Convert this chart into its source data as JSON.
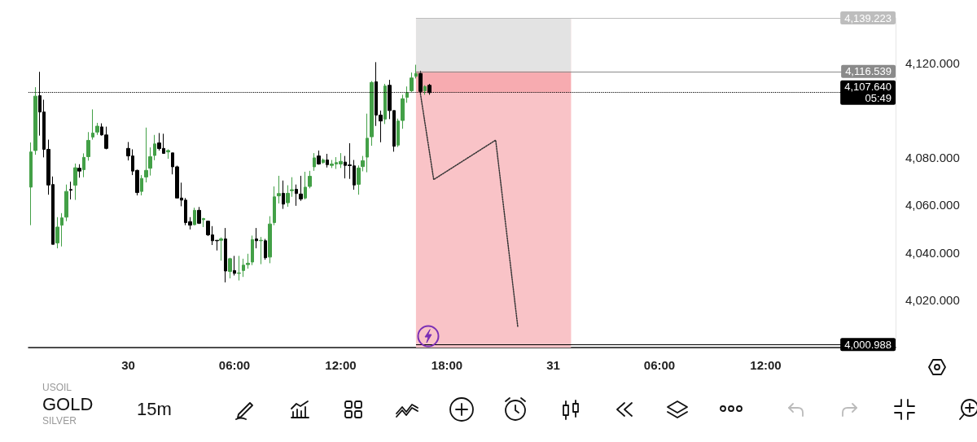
{
  "chart_data": {
    "type": "candlestick",
    "xlim": [
      "--10-29T18:22",
      "--10-31T19:20"
    ],
    "xticks": [
      {
        "value": "--10-30T00:00",
        "label": "30"
      },
      {
        "value": "--10-30T06:00",
        "label": "06:00"
      },
      {
        "value": "--10-30T12:00",
        "label": "12:00"
      },
      {
        "value": "--10-30T18:00",
        "label": "18:00"
      },
      {
        "value": "--10-31T00:00",
        "label": "31"
      },
      {
        "value": "--10-31T06:00",
        "label": "06:00"
      },
      {
        "value": "--10-31T12:00",
        "label": "12:00"
      }
    ],
    "ylim": [
      3999.7,
      4139.223
    ],
    "yticks": [
      {
        "value": 4020,
        "label": "4,020.000"
      },
      {
        "value": 4040,
        "label": "4,040.000"
      },
      {
        "value": 4060,
        "label": "4,060.000"
      },
      {
        "value": 4080,
        "label": "4,080.000"
      },
      {
        "value": 4120,
        "label": "4,120.000"
      }
    ],
    "series": [
      {
        "x": [
          "--10-29T18:30",
          "--10-29T18:45",
          "--10-29T19:00",
          "--10-29T19:15",
          "--10-29T19:30",
          "--10-29T19:45",
          "--10-29T20:00",
          "--10-29T20:15",
          "--10-29T20:30",
          "--10-29T20:45",
          "--10-29T21:00",
          "--10-29T21:15",
          "--10-29T21:30",
          "--10-29T21:45",
          "--10-29T22:00",
          "--10-29T22:15",
          "--10-29T22:30",
          "--10-29T22:45",
          "--10-30T00:00",
          "--10-30T00:15",
          "--10-30T00:30",
          "--10-30T00:45",
          "--10-30T01:00",
          "--10-30T01:15",
          "--10-30T01:30",
          "--10-30T01:45",
          "--10-30T02:00",
          "--10-30T02:15",
          "--10-30T02:30",
          "--10-30T02:45",
          "--10-30T03:00",
          "--10-30T03:15",
          "--10-30T03:30",
          "--10-30T03:45",
          "--10-30T04:00",
          "--10-30T04:15",
          "--10-30T04:30",
          "--10-30T04:45",
          "--10-30T05:00",
          "--10-30T05:15",
          "--10-30T05:30",
          "--10-30T05:45",
          "--10-30T06:00",
          "--10-30T06:15",
          "--10-30T06:30",
          "--10-30T06:45",
          "--10-30T07:00",
          "--10-30T07:15",
          "--10-30T07:30",
          "--10-30T07:45",
          "--10-30T08:00",
          "--10-30T08:15",
          "--10-30T08:30",
          "--10-30T08:45",
          "--10-30T09:00",
          "--10-30T09:15",
          "--10-30T09:30",
          "--10-30T09:45",
          "--10-30T10:00",
          "--10-30T10:15",
          "--10-30T10:30",
          "--10-30T10:45",
          "--10-30T11:00",
          "--10-30T11:15",
          "--10-30T11:30",
          "--10-30T11:45",
          "--10-30T12:00",
          "--10-30T12:15",
          "--10-30T12:30",
          "--10-30T12:45",
          "--10-30T13:00",
          "--10-30T13:15",
          "--10-30T13:30",
          "--10-30T13:45",
          "--10-30T14:00",
          "--10-30T14:15",
          "--10-30T14:30",
          "--10-30T14:45",
          "--10-30T15:00",
          "--10-30T15:15",
          "--10-30T15:30",
          "--10-30T15:45",
          "--10-30T16:00",
          "--10-30T16:15",
          "--10-30T16:30",
          "--10-30T16:45",
          "--10-30T17:00"
        ],
        "ohlc": [
          [
            4067.6,
            4086.5,
            4051.5,
            4082.5
          ],
          [
            4083.1,
            4109.9,
            4081.3,
            4106.1
          ],
          [
            4106.3,
            4116.4,
            4089.4,
            4099.4
          ],
          [
            4099.4,
            4104.6,
            4080.2,
            4083.6
          ],
          [
            4083.6,
            4087.7,
            4064.4,
            4068.5
          ],
          [
            4068.7,
            4072.1,
            4043.4,
            4043.4
          ],
          [
            4044.0,
            4054.9,
            4041.7,
            4050.7
          ],
          [
            4051.5,
            4056.6,
            4042.5,
            4054.6
          ],
          [
            4054.9,
            4068.7,
            4053.2,
            4065.8
          ],
          [
            4066.6,
            4069.9,
            4062.4,
            4066.3
          ],
          [
            4068.4,
            4077.6,
            4062.2,
            4075.8
          ],
          [
            4075.6,
            4077.3,
            4071.6,
            4074.4
          ],
          [
            4075.0,
            4081.9,
            4071.8,
            4080.2
          ],
          [
            4080.5,
            4090.9,
            4078.8,
            4087.4
          ],
          [
            4088.8,
            4100.5,
            4087.7,
            4090.5
          ],
          [
            4090.9,
            4094.8,
            4089.7,
            4093.4
          ],
          [
            4093.1,
            4094.6,
            4089.4,
            4089.7
          ],
          [
            4089.7,
            4093.2,
            4083.6,
            4084.0
          ],
          [
            4084.0,
            4086.7,
            4078.9,
            4080.8
          ],
          [
            4080.8,
            4083.6,
            4072.7,
            4074.4
          ],
          [
            4074.7,
            4075.0,
            4064.1,
            4065.3
          ],
          [
            4065.8,
            4072.7,
            4064.1,
            4071.3
          ],
          [
            4071.9,
            4092.8,
            4069.6,
            4074.7
          ],
          [
            4075.6,
            4084.4,
            4072.5,
            4080.5
          ],
          [
            4081.0,
            4089.7,
            4079.0,
            4085.9
          ],
          [
            4086.3,
            4090.5,
            4083.1,
            4083.9
          ],
          [
            4084.0,
            4090.2,
            4081.9,
            4081.9
          ],
          [
            4082.5,
            4083.6,
            4079.6,
            4083.1
          ],
          [
            4082.1,
            4082.1,
            4073.0,
            4076.2
          ],
          [
            4076.2,
            4076.7,
            4063.0,
            4063.0
          ],
          [
            4063.0,
            4069.5,
            4059.5,
            4062.1
          ],
          [
            4062.1,
            4063.0,
            4051.5,
            4052.6
          ],
          [
            4053.0,
            4054.9,
            4049.7,
            4051.5
          ],
          [
            4051.7,
            4058.9,
            4051.5,
            4057.8
          ],
          [
            4057.8,
            4059.2,
            4052.0,
            4052.3
          ],
          [
            4053.8,
            4054.6,
            4050.7,
            4054.3
          ],
          [
            4053.2,
            4053.4,
            4046.9,
            4047.4
          ],
          [
            4047.4,
            4051.1,
            4043.1,
            4044.9
          ],
          [
            4045.1,
            4045.1,
            4040.8,
            4044.9
          ],
          [
            4045.1,
            4046.3,
            4036.5,
            4045.7
          ],
          [
            4045.7,
            4050.3,
            4027.3,
            4032.1
          ],
          [
            4031.9,
            4037.7,
            4029.0,
            4037.3
          ],
          [
            4032.3,
            4038.5,
            4030.2,
            4031.1
          ],
          [
            4031.1,
            4038.5,
            4028.1,
            4031.3
          ],
          [
            4032.3,
            4037.3,
            4029.6,
            4034.6
          ],
          [
            4034.8,
            4039.4,
            4033.1,
            4035.4
          ],
          [
            4035.9,
            4047.1,
            4034.6,
            4045.4
          ],
          [
            4045.7,
            4050.3,
            4041.7,
            4044.9
          ],
          [
            4044.9,
            4046.5,
            4035.0,
            4045.1
          ],
          [
            4044.9,
            4045.7,
            4036.9,
            4037.7
          ],
          [
            4038.0,
            4055.3,
            4035.4,
            4052.0
          ],
          [
            4052.6,
            4067.9,
            4051.5,
            4063.5
          ],
          [
            4063.9,
            4072.4,
            4060.7,
            4064.9
          ],
          [
            4065.0,
            4070.4,
            4058.4,
            4060.4
          ],
          [
            4061.0,
            4068.4,
            4059.3,
            4065.0
          ],
          [
            4066.1,
            4071.8,
            4063.5,
            4066.5
          ],
          [
            4066.7,
            4068.7,
            4059.7,
            4064.9
          ],
          [
            4064.7,
            4072.4,
            4061.8,
            4062.6
          ],
          [
            4063.0,
            4074.1,
            4062.4,
            4067.6
          ],
          [
            4067.9,
            4074.5,
            4067.1,
            4072.2
          ],
          [
            4076.2,
            4082.0,
            4074.5,
            4080.0
          ],
          [
            4080.8,
            4083.1,
            4077.1,
            4077.4
          ],
          [
            4078.0,
            4079.7,
            4077.6,
            4079.1
          ],
          [
            4079.1,
            4081.7,
            4075.9,
            4077.1
          ],
          [
            4076.8,
            4079.1,
            4075.7,
            4077.4
          ],
          [
            4077.4,
            4080.3,
            4075.3,
            4078.0
          ],
          [
            4077.4,
            4082.0,
            4075.7,
            4078.5
          ],
          [
            4078.2,
            4080.8,
            4071.3,
            4076.8
          ],
          [
            4077.0,
            4086.2,
            4071.1,
            4076.7
          ],
          [
            4076.6,
            4079.1,
            4066.5,
            4068.5
          ],
          [
            4068.8,
            4076.8,
            4064.4,
            4075.7
          ],
          [
            4076.3,
            4080.8,
            4074.3,
            4078.8
          ],
          [
            4080.3,
            4098.7,
            4073.9,
            4088.3
          ],
          [
            4088.9,
            4112.5,
            4085.1,
            4111.9
          ],
          [
            4112.2,
            4120.5,
            4093.5,
            4098.1
          ],
          [
            4098.1,
            4100.0,
            4086.6,
            4095.6
          ],
          [
            4096.4,
            4111.3,
            4094.3,
            4110.4
          ],
          [
            4110.7,
            4113.0,
            4096.4,
            4100.0
          ],
          [
            4100.0,
            4100.0,
            4082.6,
            4084.9
          ],
          [
            4085.4,
            4096.6,
            4084.6,
            4095.6
          ],
          [
            4095.8,
            4106.7,
            4092.3,
            4105.0
          ],
          [
            4105.6,
            4110.2,
            4103.3,
            4107.6
          ],
          [
            4108.4,
            4116.1,
            4107.9,
            4113.8
          ],
          [
            4114.5,
            4119.4,
            4113.6,
            4115.7
          ],
          [
            4115.7,
            4116.8,
            4106.7,
            4108.1
          ],
          [
            4108.4,
            4110.7,
            4106.7,
            4110.2
          ],
          [
            4110.7,
            4111.3,
            4106.7,
            4107.6
          ]
        ],
        "colors": [
          "#43a047",
          "#43a047",
          "#000000",
          "#000000",
          "#000000",
          "#000000",
          "#43a047",
          "#43a047",
          "#43a047",
          "#000000",
          "#43a047",
          "#000000",
          "#43a047",
          "#43a047",
          "#43a047",
          "#43a047",
          "#000000",
          "#000000",
          "#000000",
          "#000000",
          "#000000",
          "#43a047",
          "#43a047",
          "#43a047",
          "#43a047",
          "#000000",
          "#000000",
          "#43a047",
          "#000000",
          "#000000",
          "#000000",
          "#000000",
          "#000000",
          "#43a047",
          "#000000",
          "#43a047",
          "#000000",
          "#000000",
          "#000000",
          "#43a047",
          "#000000",
          "#43a047",
          "#000000",
          "#43a047",
          "#43a047",
          "#43a047",
          "#43a047",
          "#000000",
          "#43a047",
          "#000000",
          "#43a047",
          "#43a047",
          "#43a047",
          "#000000",
          "#43a047",
          "#43a047",
          "#000000",
          "#000000",
          "#43a047",
          "#43a047",
          "#43a047",
          "#000000",
          "#43a047",
          "#000000",
          "#43a047",
          "#43a047",
          "#43a047",
          "#000000",
          "#000000",
          "#000000",
          "#43a047",
          "#43a047",
          "#43a047",
          "#43a047",
          "#000000",
          "#000000",
          "#43a047",
          "#000000",
          "#000000",
          "#43a047",
          "#43a047",
          "#43a047",
          "#43a047",
          "#43a047",
          "#000000",
          "#43a047",
          "#000000"
        ]
      },
      {
        "type": "line",
        "x": [
          "--10-30T16:30",
          "--10-30T17:15",
          "--10-30T20:45",
          "--10-30T22:00"
        ],
        "values": [
          4107.2,
          4070.8,
          4087.5,
          4008.4
        ],
        "color": "#333333",
        "line_style": "dotted",
        "marker": "none"
      }
    ],
    "bands": [
      {
        "axis": "y",
        "from": 4116.539,
        "to": 4139.223,
        "color": "#e3e3e3"
      },
      {
        "axis": "y",
        "from": 4107.64,
        "to": 4116.539,
        "color": "#f7abb0"
      },
      {
        "axis": "y",
        "from": 4000.988,
        "to": 4107.64,
        "color": "#f9c3c7"
      },
      {
        "axis": "x",
        "from": "--10-30T16:15",
        "to": "--10-31T01:00",
        "color": "#f9c3c7"
      }
    ],
    "ref_lines": [
      {
        "axis": "y",
        "value": 4139.223,
        "label": "4,139.223",
        "color": "#bdbdbd",
        "line_style": "solid"
      },
      {
        "axis": "y",
        "value": 4116.539,
        "label": "4,116.539",
        "color": "#8a8a8a",
        "line_style": "solid"
      },
      {
        "axis": "y",
        "value": 4107.64,
        "label": "4,107.640\n05:49",
        "color": "#000000",
        "line_style": "dotted"
      },
      {
        "axis": "y",
        "value": 4000.988,
        "label": "4,000.988",
        "color": "#000000",
        "line_style": "solid"
      }
    ],
    "annotations": [
      "USOIL",
      "GOLD",
      "SILVER",
      "15m"
    ]
  }
}
